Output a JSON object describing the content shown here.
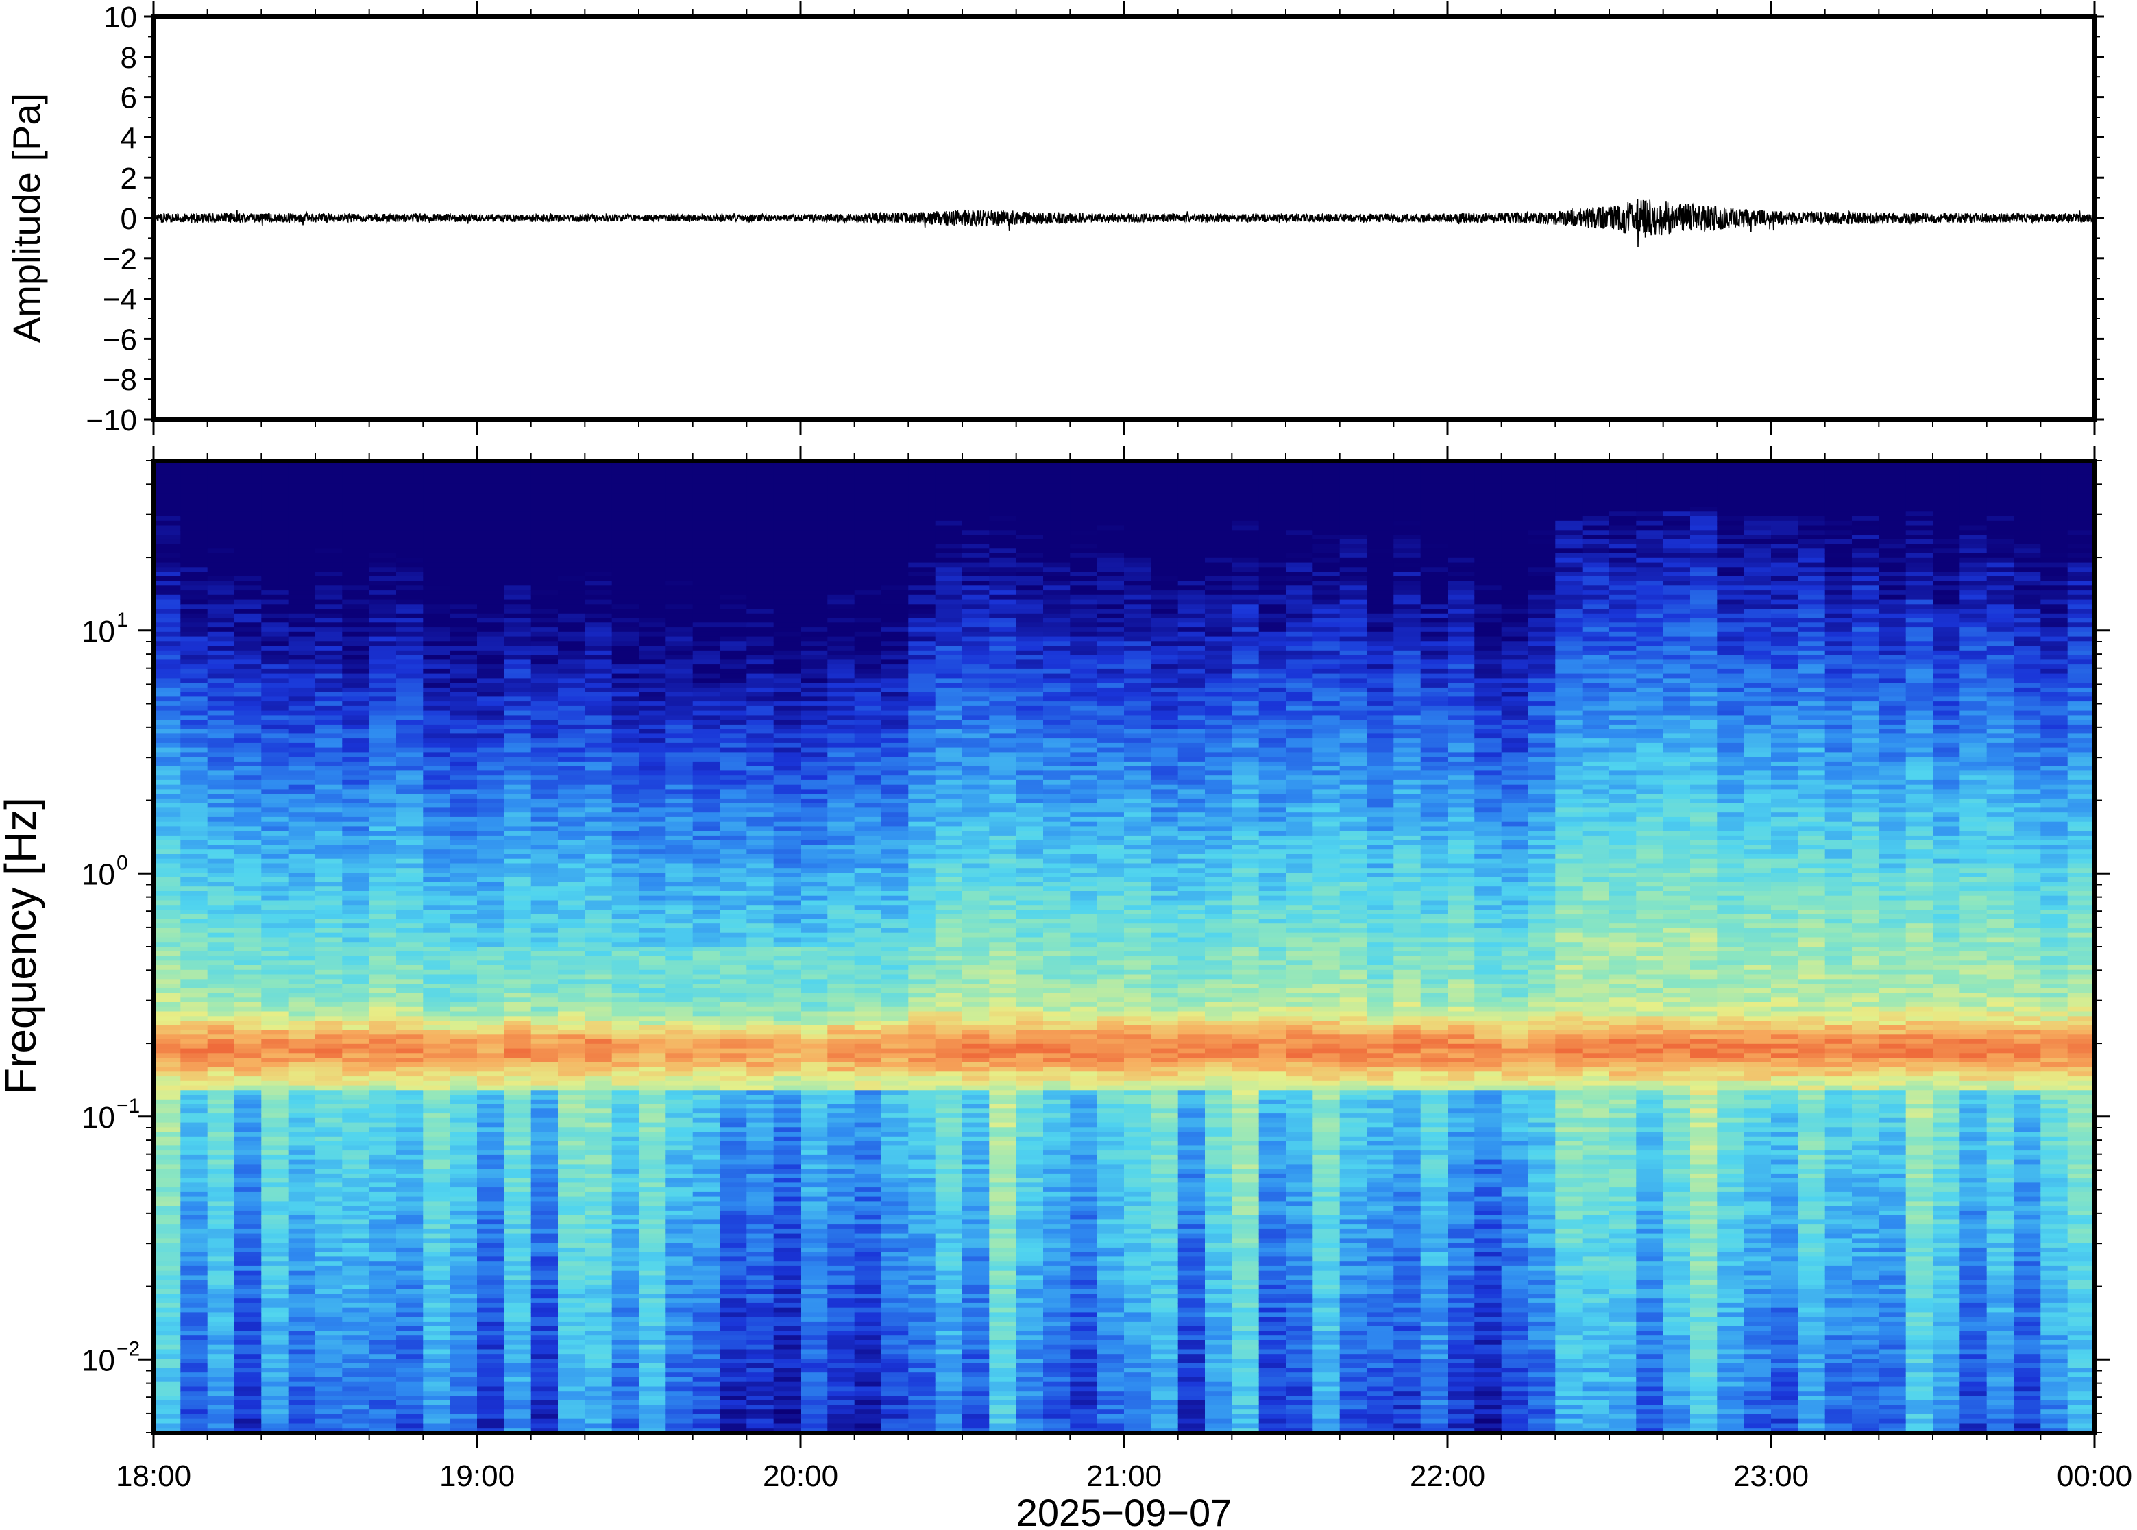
{
  "chart_data": [
    {
      "type": "line",
      "panel": "waveform",
      "title": "",
      "xlabel": "",
      "ylabel": "Amplitude [Pa]",
      "ylim": [
        -10,
        10
      ],
      "yticks": [
        10,
        8,
        6,
        4,
        2,
        0,
        -2,
        -4,
        -6,
        -8,
        -10
      ],
      "ytick_labels": [
        "10",
        "8",
        "6",
        "4",
        "2",
        "0",
        "−2",
        "−4",
        "−6",
        "−8",
        "−10"
      ],
      "x_range_hours": [
        0,
        6
      ],
      "series": [
        {
          "color": "#000000",
          "x_hours": [
            0,
            0.5,
            1,
            1.5,
            2,
            2.4,
            2.5,
            2.6,
            2.75,
            3,
            3.5,
            4,
            4.3,
            4.5,
            4.6,
            4.75,
            5,
            5.5,
            6
          ],
          "envelope_pa": [
            0.25,
            0.22,
            0.2,
            0.18,
            0.18,
            0.3,
            0.45,
            0.4,
            0.3,
            0.22,
            0.2,
            0.22,
            0.3,
            0.6,
            1.0,
            0.7,
            0.35,
            0.25,
            0.2
          ]
        }
      ]
    },
    {
      "type": "heatmap",
      "panel": "spectrogram",
      "title": "",
      "xlabel": "2025−09−07",
      "ylabel": "Frequency [Hz]",
      "y_scale": "log",
      "ylim_hz": [
        0.005,
        50
      ],
      "ytick_values": [
        10,
        1,
        0.1,
        0.01
      ],
      "ytick_mantissa": "10",
      "ytick_exponents": [
        "1",
        "0",
        "−1",
        "−2"
      ],
      "x_ticks": [
        "18:00",
        "19:00",
        "20:00",
        "21:00",
        "22:00",
        "23:00",
        "00:00"
      ],
      "x_tick_hours": [
        0,
        1,
        2,
        3,
        4,
        5,
        6
      ],
      "colormap": [
        "#0b0078",
        "#1a35d8",
        "#2f8bf0",
        "#50d4ef",
        "#8de6bf",
        "#e6ef88",
        "#f7ae5f",
        "#ef6b3b"
      ],
      "microbarom_peak_hz": 0.19,
      "time_columns_hours": [
        0,
        0.25,
        0.5,
        0.75,
        1,
        1.25,
        1.5,
        1.75,
        2,
        2.25,
        2.35,
        2.5,
        2.75,
        3,
        3.25,
        3.5,
        3.75,
        4,
        4.25,
        4.35,
        4.5,
        4.75,
        5,
        5.25,
        5.5,
        5.75,
        6
      ],
      "energy_level": [
        0.55,
        0.6,
        0.45,
        0.4,
        0.4,
        0.35,
        0.35,
        0.35,
        0.35,
        0.3,
        0.6,
        0.65,
        0.6,
        0.55,
        0.55,
        0.55,
        0.55,
        0.5,
        0.45,
        0.75,
        0.8,
        0.8,
        0.7,
        0.65,
        0.65,
        0.6,
        0.55
      ]
    }
  ]
}
